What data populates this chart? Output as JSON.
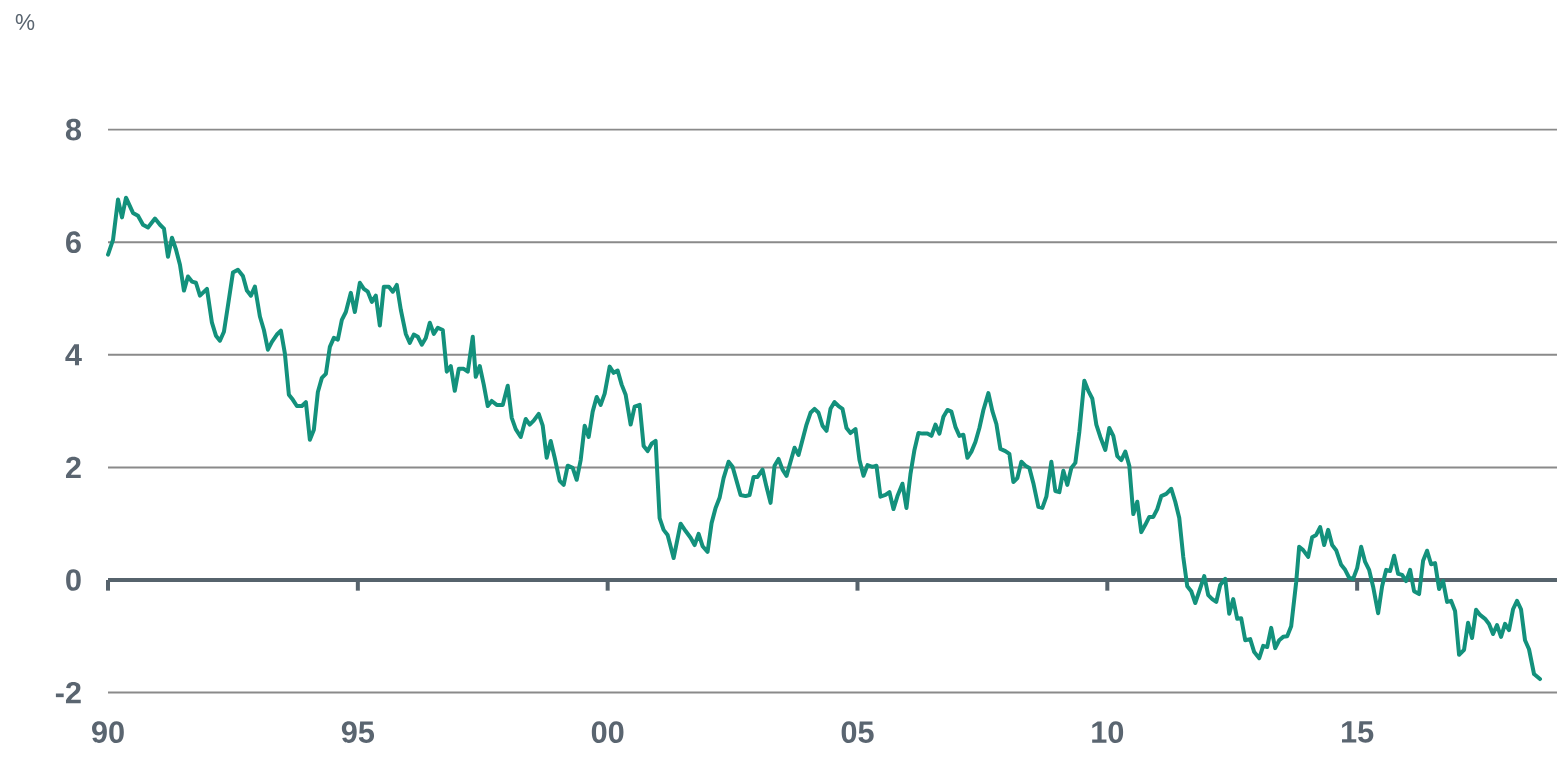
{
  "chart_data": {
    "type": "line",
    "ylabel": "%",
    "color": "#13917c",
    "line_style": "solid",
    "marker": "none",
    "grid": "y",
    "x": [
      1990.0,
      1990.1,
      1990.2,
      1990.28,
      1990.36,
      1990.5,
      1990.6,
      1990.7,
      1990.8,
      1990.94,
      1991.04,
      1991.12,
      1991.2,
      1991.28,
      1991.36,
      1991.44,
      1991.52,
      1991.6,
      1991.68,
      1991.76,
      1991.84,
      1991.98,
      1992.08,
      1992.16,
      1992.24,
      1992.32,
      1992.4,
      1992.5,
      1992.6,
      1992.7,
      1992.78,
      1992.86,
      1992.94,
      1993.04,
      1993.12,
      1993.2,
      1993.28,
      1993.38,
      1993.46,
      1993.54,
      1993.62,
      1993.7,
      1993.78,
      1993.88,
      1993.96,
      1994.04,
      1994.12,
      1994.2,
      1994.28,
      1994.36,
      1994.44,
      1994.52,
      1994.6,
      1994.68,
      1994.76,
      1994.86,
      1994.94,
      1995.04,
      1995.12,
      1995.2,
      1995.28,
      1995.36,
      1995.44,
      1995.52,
      1995.62,
      1995.7,
      1995.78,
      1995.86,
      1995.96,
      1996.04,
      1996.12,
      1996.2,
      1996.28,
      1996.36,
      1996.44,
      1996.52,
      1996.6,
      1996.7,
      1996.78,
      1996.86,
      1996.94,
      1997.02,
      1997.12,
      1997.2,
      1997.3,
      1997.36,
      1997.44,
      1997.52,
      1997.6,
      1997.68,
      1997.78,
      1997.9,
      1998.0,
      1998.08,
      1998.16,
      1998.26,
      1998.36,
      1998.44,
      1998.52,
      1998.62,
      1998.7,
      1998.78,
      1998.86,
      1998.94,
      1999.04,
      1999.12,
      1999.2,
      1999.3,
      1999.38,
      1999.46,
      1999.54,
      1999.62,
      1999.7,
      1999.78,
      1999.86,
      1999.94,
      2000.04,
      2000.12,
      2000.2,
      2000.28,
      2000.36,
      2000.46,
      2000.54,
      2000.64,
      2000.72,
      2000.8,
      2000.88,
      2000.96,
      2001.04,
      2001.12,
      2001.2,
      2001.32,
      2001.46,
      2001.56,
      2001.66,
      2001.74,
      2001.82,
      2001.9,
      2002.0,
      2002.08,
      2002.16,
      2002.24,
      2002.32,
      2002.42,
      2002.5,
      2002.58,
      2002.66,
      2002.76,
      2002.84,
      2002.92,
      2003.0,
      2003.1,
      2003.18,
      2003.26,
      2003.34,
      2003.42,
      2003.5,
      2003.58,
      2003.66,
      2003.74,
      2003.82,
      2003.9,
      2003.98,
      2004.06,
      2004.14,
      2004.22,
      2004.3,
      2004.38,
      2004.46,
      2004.54,
      2004.62,
      2004.7,
      2004.78,
      2004.86,
      2004.96,
      2005.04,
      2005.12,
      2005.2,
      2005.3,
      2005.38,
      2005.46,
      2005.56,
      2005.64,
      2005.72,
      2005.8,
      2005.9,
      2005.98,
      2006.06,
      2006.14,
      2006.22,
      2006.3,
      2006.4,
      2006.48,
      2006.56,
      2006.64,
      2006.72,
      2006.8,
      2006.88,
      2006.96,
      2007.04,
      2007.12,
      2007.2,
      2007.28,
      2007.36,
      2007.44,
      2007.52,
      2007.62,
      2007.7,
      2007.78,
      2007.86,
      2007.96,
      2008.04,
      2008.12,
      2008.2,
      2008.28,
      2008.36,
      2008.44,
      2008.52,
      2008.62,
      2008.7,
      2008.78,
      2008.88,
      2008.96,
      2009.04,
      2009.12,
      2009.2,
      2009.28,
      2009.36,
      2009.44,
      2009.54,
      2009.62,
      2009.7,
      2009.78,
      2009.86,
      2009.96,
      2010.04,
      2010.12,
      2010.2,
      2010.28,
      2010.36,
      2010.44,
      2010.52,
      2010.6,
      2010.68,
      2010.76,
      2010.84,
      2010.92,
      2011.0,
      2011.08,
      2011.18,
      2011.28,
      2011.36,
      2011.44,
      2011.52,
      2011.6,
      2011.68,
      2011.76,
      2011.84,
      2011.94,
      2012.02,
      2012.1,
      2012.18,
      2012.26,
      2012.36,
      2012.44,
      2012.52,
      2012.6,
      2012.68,
      2012.76,
      2012.86,
      2012.94,
      2013.04,
      2013.12,
      2013.2,
      2013.28,
      2013.36,
      2013.44,
      2013.52,
      2013.6,
      2013.68,
      2013.78,
      2013.84,
      2013.92,
      2014.02,
      2014.1,
      2014.18,
      2014.26,
      2014.34,
      2014.42,
      2014.5,
      2014.58,
      2014.68,
      2014.76,
      2014.84,
      2014.92,
      2015.0,
      2015.08,
      2015.16,
      2015.24,
      2015.32,
      2015.42,
      2015.5,
      2015.58,
      2015.66,
      2015.74,
      2015.82,
      2015.9,
      2015.98,
      2016.06,
      2016.14,
      2016.24,
      2016.32,
      2016.4,
      2016.48,
      2016.56,
      2016.64,
      2016.72,
      2016.8,
      2016.88,
      2016.96,
      2017.04,
      2017.14,
      2017.22,
      2017.3,
      2017.38,
      2017.46,
      2017.56,
      2017.64,
      2017.72,
      2017.8,
      2017.88,
      2017.96,
      2018.04,
      2018.12,
      2018.2,
      2018.28,
      2018.36,
      2018.44,
      2018.54,
      2018.66
    ],
    "values": [
      5.78,
      6.04,
      6.76,
      6.44,
      6.79,
      6.52,
      6.47,
      6.31,
      6.26,
      6.42,
      6.31,
      6.24,
      5.74,
      6.08,
      5.87,
      5.6,
      5.14,
      5.39,
      5.3,
      5.28,
      5.05,
      5.17,
      4.57,
      4.34,
      4.25,
      4.41,
      4.87,
      5.46,
      5.51,
      5.4,
      5.14,
      5.05,
      5.21,
      4.68,
      4.44,
      4.09,
      4.23,
      4.36,
      4.43,
      4.02,
      3.29,
      3.2,
      3.09,
      3.09,
      3.16,
      2.49,
      2.67,
      3.34,
      3.59,
      3.66,
      4.14,
      4.3,
      4.27,
      4.62,
      4.76,
      5.1,
      4.76,
      5.28,
      5.17,
      5.12,
      4.94,
      5.05,
      4.52,
      5.21,
      5.21,
      5.12,
      5.24,
      4.8,
      4.37,
      4.21,
      4.36,
      4.32,
      4.18,
      4.3,
      4.57,
      4.37,
      4.48,
      4.44,
      3.7,
      3.8,
      3.36,
      3.75,
      3.75,
      3.7,
      4.32,
      3.61,
      3.8,
      3.47,
      3.09,
      3.18,
      3.11,
      3.11,
      3.45,
      2.88,
      2.68,
      2.54,
      2.86,
      2.76,
      2.83,
      2.95,
      2.74,
      2.17,
      2.47,
      2.17,
      1.76,
      1.69,
      2.03,
      1.99,
      1.78,
      2.13,
      2.74,
      2.54,
      2.99,
      3.25,
      3.11,
      3.31,
      3.79,
      3.68,
      3.72,
      3.47,
      3.29,
      2.76,
      3.08,
      3.11,
      2.38,
      2.29,
      2.42,
      2.47,
      1.1,
      0.89,
      0.8,
      0.39,
      1.0,
      0.87,
      0.75,
      0.62,
      0.82,
      0.6,
      0.5,
      1.01,
      1.28,
      1.46,
      1.81,
      2.1,
      2.01,
      1.76,
      1.51,
      1.49,
      1.51,
      1.83,
      1.83,
      1.96,
      1.65,
      1.37,
      2.03,
      2.15,
      1.96,
      1.85,
      2.1,
      2.35,
      2.22,
      2.49,
      2.76,
      2.97,
      3.04,
      2.97,
      2.74,
      2.65,
      3.04,
      3.16,
      3.09,
      3.04,
      2.7,
      2.61,
      2.68,
      2.13,
      1.85,
      2.04,
      2.01,
      2.03,
      1.48,
      1.51,
      1.56,
      1.26,
      1.49,
      1.71,
      1.28,
      1.88,
      2.31,
      2.61,
      2.6,
      2.6,
      2.56,
      2.76,
      2.6,
      2.9,
      3.02,
      2.99,
      2.72,
      2.56,
      2.58,
      2.17,
      2.28,
      2.45,
      2.7,
      3.02,
      3.32,
      3.0,
      2.77,
      2.33,
      2.29,
      2.24,
      1.74,
      1.81,
      2.1,
      2.03,
      1.99,
      1.72,
      1.3,
      1.28,
      1.48,
      2.1,
      1.58,
      1.56,
      1.94,
      1.69,
      1.99,
      2.08,
      2.63,
      3.54,
      3.36,
      3.22,
      2.76,
      2.54,
      2.31,
      2.7,
      2.56,
      2.2,
      2.13,
      2.28,
      2.03,
      1.17,
      1.39,
      0.85,
      0.98,
      1.12,
      1.12,
      1.26,
      1.49,
      1.53,
      1.62,
      1.39,
      1.1,
      0.41,
      -0.11,
      -0.2,
      -0.41,
      -0.2,
      0.07,
      -0.27,
      -0.34,
      -0.39,
      -0.09,
      0.02,
      -0.6,
      -0.34,
      -0.69,
      -0.68,
      -1.07,
      -1.05,
      -1.28,
      -1.39,
      -1.17,
      -1.19,
      -0.85,
      -1.21,
      -1.07,
      -1.01,
      -1.0,
      -0.82,
      -0.04,
      0.59,
      0.53,
      0.41,
      0.76,
      0.8,
      0.94,
      0.62,
      0.89,
      0.62,
      0.53,
      0.27,
      0.18,
      0.04,
      0.02,
      0.21,
      0.59,
      0.32,
      0.18,
      -0.12,
      -0.59,
      -0.11,
      0.18,
      0.16,
      0.43,
      0.11,
      0.09,
      -0.02,
      0.18,
      -0.2,
      -0.25,
      0.34,
      0.52,
      0.28,
      0.3,
      -0.16,
      -0.02,
      -0.39,
      -0.37,
      -0.55,
      -1.33,
      -1.24,
      -0.76,
      -1.03,
      -0.53,
      -0.62,
      -0.69,
      -0.78,
      -0.96,
      -0.8,
      -1.01,
      -0.78,
      -0.89,
      -0.52,
      -0.37,
      -0.52,
      -1.07,
      -1.23,
      -1.67,
      -1.76
    ],
    "xlim": [
      1990,
      2019
    ],
    "xticks": [
      {
        "value": 1990,
        "label": "90"
      },
      {
        "value": 1995,
        "label": "95"
      },
      {
        "value": 2000,
        "label": "00"
      },
      {
        "value": 2005,
        "label": "05"
      },
      {
        "value": 2010,
        "label": "10"
      },
      {
        "value": 2015,
        "label": "15"
      }
    ],
    "ylim": [
      -2,
      8
    ],
    "yticks": [
      -2,
      0,
      2,
      4,
      6,
      8
    ],
    "ref_lines": [
      {
        "axis": "y",
        "value": 0,
        "color": "#56636c"
      }
    ]
  }
}
